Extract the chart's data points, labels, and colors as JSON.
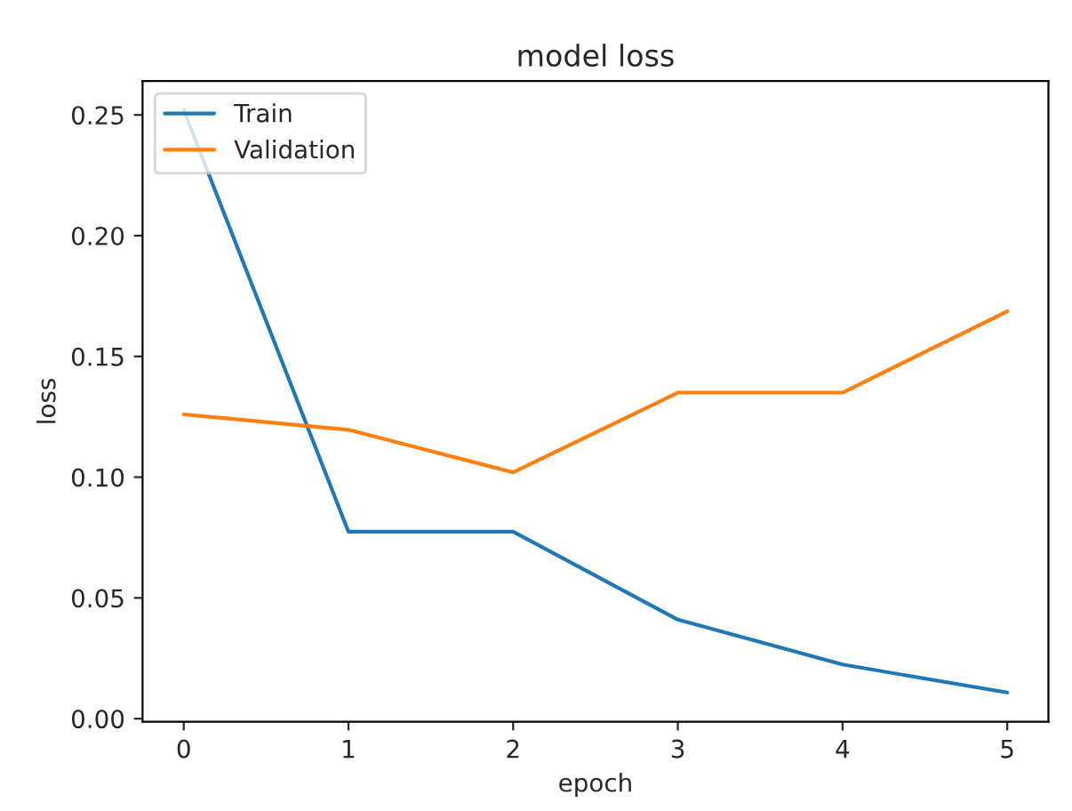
{
  "chart_data": {
    "type": "line",
    "title": "model loss",
    "xlabel": "epoch",
    "ylabel": "loss",
    "x": [
      0,
      1,
      2,
      3,
      4,
      5
    ],
    "series": [
      {
        "name": "Train",
        "color": "#1f77b4",
        "values": [
          0.252,
          0.0774,
          0.0774,
          0.041,
          0.0224,
          0.0108
        ]
      },
      {
        "name": "Validation",
        "color": "#ff7f0e",
        "values": [
          0.126,
          0.1196,
          0.102,
          0.135,
          0.135,
          0.1687
        ]
      }
    ],
    "xlim": [
      -0.25,
      5.25
    ],
    "ylim": [
      -0.0013,
      0.264
    ],
    "xticks": [
      0,
      1,
      2,
      3,
      4,
      5
    ],
    "yticks": [
      {
        "value": 0,
        "label": "0.00"
      },
      {
        "value": 0.05,
        "label": "0.05"
      },
      {
        "value": 0.1,
        "label": "0.10"
      },
      {
        "value": 0.15,
        "label": "0.15"
      },
      {
        "value": 0.2,
        "label": "0.20"
      },
      {
        "value": 0.25,
        "label": "0.25"
      }
    ],
    "legend": "upper left",
    "grid": false,
    "marker": "none",
    "line_style": "solid"
  }
}
